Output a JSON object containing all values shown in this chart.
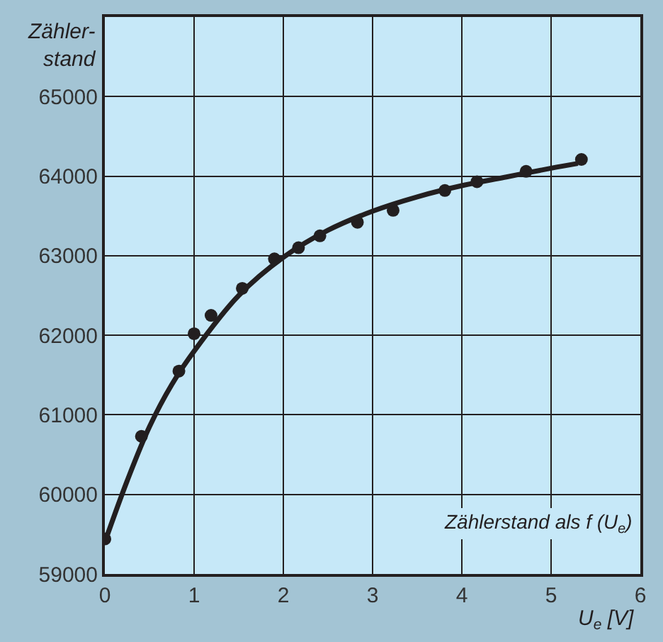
{
  "chart_data": {
    "type": "scatter",
    "xlabel": "U$_{e}$ [V]",
    "ylabel": "Zähler-\nstand",
    "annotations": [
      "Zählerstand als f (U$_{e}$)"
    ],
    "series": [
      {
        "color": "#231f20",
        "marker": "circle",
        "x": [
          0,
          0.41,
          0.83,
          1.0,
          1.19,
          1.54,
          1.9,
          2.17,
          2.41,
          2.83,
          3.23,
          3.81,
          4.17,
          4.72,
          5.34
        ],
        "values": [
          59440,
          60730,
          61550,
          62020,
          62250,
          62590,
          62960,
          63100,
          63250,
          63420,
          63570,
          63820,
          63930,
          64060,
          64210
        ]
      },
      {
        "type": "line",
        "color": "#231f20",
        "line_style": "solid",
        "x": [
          0,
          0.25,
          0.5,
          0.75,
          1,
          1.5,
          2,
          2.5,
          3,
          3.5,
          4,
          4.5,
          5,
          5.3
        ],
        "values": [
          59400,
          60170,
          60850,
          61380,
          61800,
          62500,
          62980,
          63320,
          63560,
          63740,
          63880,
          63990,
          64100,
          64160
        ]
      }
    ],
    "xlim": [
      0,
      6
    ],
    "ylim": [
      59000,
      66000
    ],
    "xticks": [
      0,
      1,
      2,
      3,
      4,
      5,
      6
    ],
    "yticks": [
      59000,
      60000,
      61000,
      62000,
      63000,
      64000,
      65000
    ],
    "grid": true
  }
}
